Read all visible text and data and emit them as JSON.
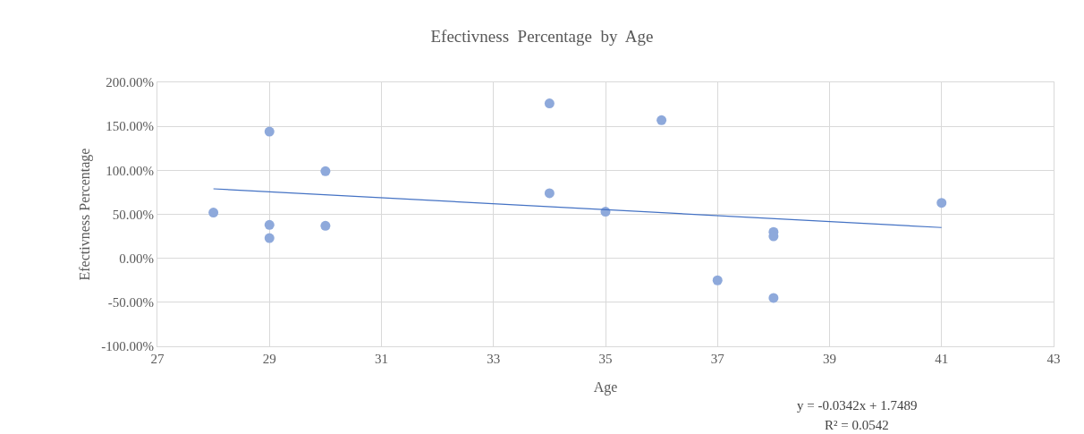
{
  "chart_data": {
    "type": "scatter",
    "title": "Efectivness  Percentage  by  Age",
    "xlabel": "Age",
    "ylabel": "Efectivness Percentage",
    "series": [
      {
        "type": "scatter",
        "marker": "circle",
        "color": "#8ea9db",
        "x": [
          28,
          29,
          29,
          29,
          30,
          30,
          34,
          34,
          35,
          36,
          37,
          38,
          38,
          38,
          41
        ],
        "values": [
          52,
          144,
          38,
          23,
          99,
          37,
          176,
          74,
          53,
          157,
          -25,
          30,
          25,
          -45,
          63
        ]
      },
      {
        "type": "line",
        "color": "#4472c4",
        "x": [
          28,
          41
        ],
        "values": [
          79,
          35
        ]
      }
    ],
    "xlim": [
      27,
      43
    ],
    "xticks": [
      27,
      29,
      31,
      33,
      35,
      37,
      39,
      41,
      43
    ],
    "ylim": [
      -100,
      200
    ],
    "yticks": [
      {
        "value": -100,
        "label": "-100.00%"
      },
      {
        "value": -50,
        "label": "-50.00%"
      },
      {
        "value": 0,
        "label": "0.00%"
      },
      {
        "value": 50,
        "label": "50.00%"
      },
      {
        "value": 100,
        "label": "100.00%"
      },
      {
        "value": 150,
        "label": "150.00%"
      },
      {
        "value": 200,
        "label": "200.00%"
      }
    ],
    "grid": true,
    "annotations": [
      "y = -0.0342x + 1.7489",
      "R² = 0.0542"
    ]
  }
}
